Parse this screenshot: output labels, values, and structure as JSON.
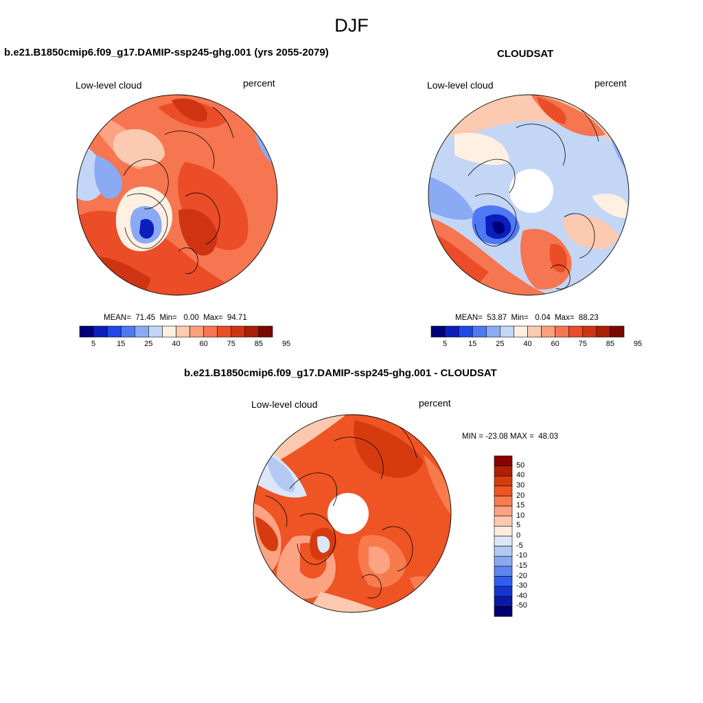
{
  "figure": {
    "title": "DJF"
  },
  "panels": [
    {
      "title": "b.e21.B1850cmip6.f09_g17.DAMIP-ssp245-ghg.001 (yrs 2055-2079)",
      "left_label": "Low-level cloud",
      "right_label": "percent",
      "stats": "MEAN=  71.45  Min=   0.00  Max=  94.71",
      "colorbar_labels": [
        "5",
        "15",
        "25",
        "40",
        "60",
        "75",
        "85",
        "95"
      ]
    },
    {
      "title": "CLOUDSAT",
      "left_label": "Low-level cloud",
      "right_label": "percent",
      "stats": "MEAN=  53.87  Min=   0.04  Max=  88.23",
      "colorbar_labels": [
        "5",
        "15",
        "25",
        "40",
        "60",
        "75",
        "85",
        "95"
      ]
    },
    {
      "title": "b.e21.B1850cmip6.f09_g17.DAMIP-ssp245-ghg.001 - CLOUDSAT",
      "left_label": "Low-level cloud",
      "right_label": "percent",
      "stats": "MIN = -23.08 MAX =  48.03",
      "colorbar_labels": [
        "50",
        "40",
        "30",
        "20",
        "15",
        "10",
        "5",
        "0",
        "-5",
        "-10",
        "-15",
        "-20",
        "-30",
        "-40",
        "-50"
      ]
    }
  ],
  "colormaps": {
    "abs": [
      "#00007a",
      "#0b1fbe",
      "#1f49e6",
      "#4f79f2",
      "#8aaaf3",
      "#c4d6f6",
      "#fff0e2",
      "#fccab0",
      "#fb9f7c",
      "#f57650",
      "#ea4d27",
      "#cf3412",
      "#a91f07",
      "#780a00"
    ],
    "diff": [
      "#8b0000",
      "#b01e05",
      "#d63b10",
      "#ee5424",
      "#f87b4e",
      "#fba382",
      "#fcc8af",
      "#fdece0",
      "#dbe6f8",
      "#b3c9f3",
      "#89a9ef",
      "#5c85ee",
      "#2f5ff0",
      "#1537cf",
      "#0a1aa3",
      "#000070"
    ]
  }
}
